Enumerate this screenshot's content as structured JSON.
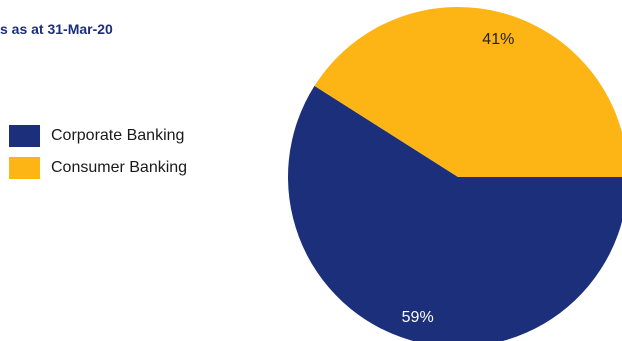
{
  "title": "s as at 31-Mar-20",
  "chart_data": {
    "type": "pie",
    "categories": [
      "Corporate Banking",
      "Consumer Banking"
    ],
    "values": [
      59,
      41
    ],
    "value_labels": [
      "59%",
      "41%"
    ],
    "colors": [
      "#1b2f7a",
      "#fdb515"
    ],
    "legend_position": "left"
  }
}
